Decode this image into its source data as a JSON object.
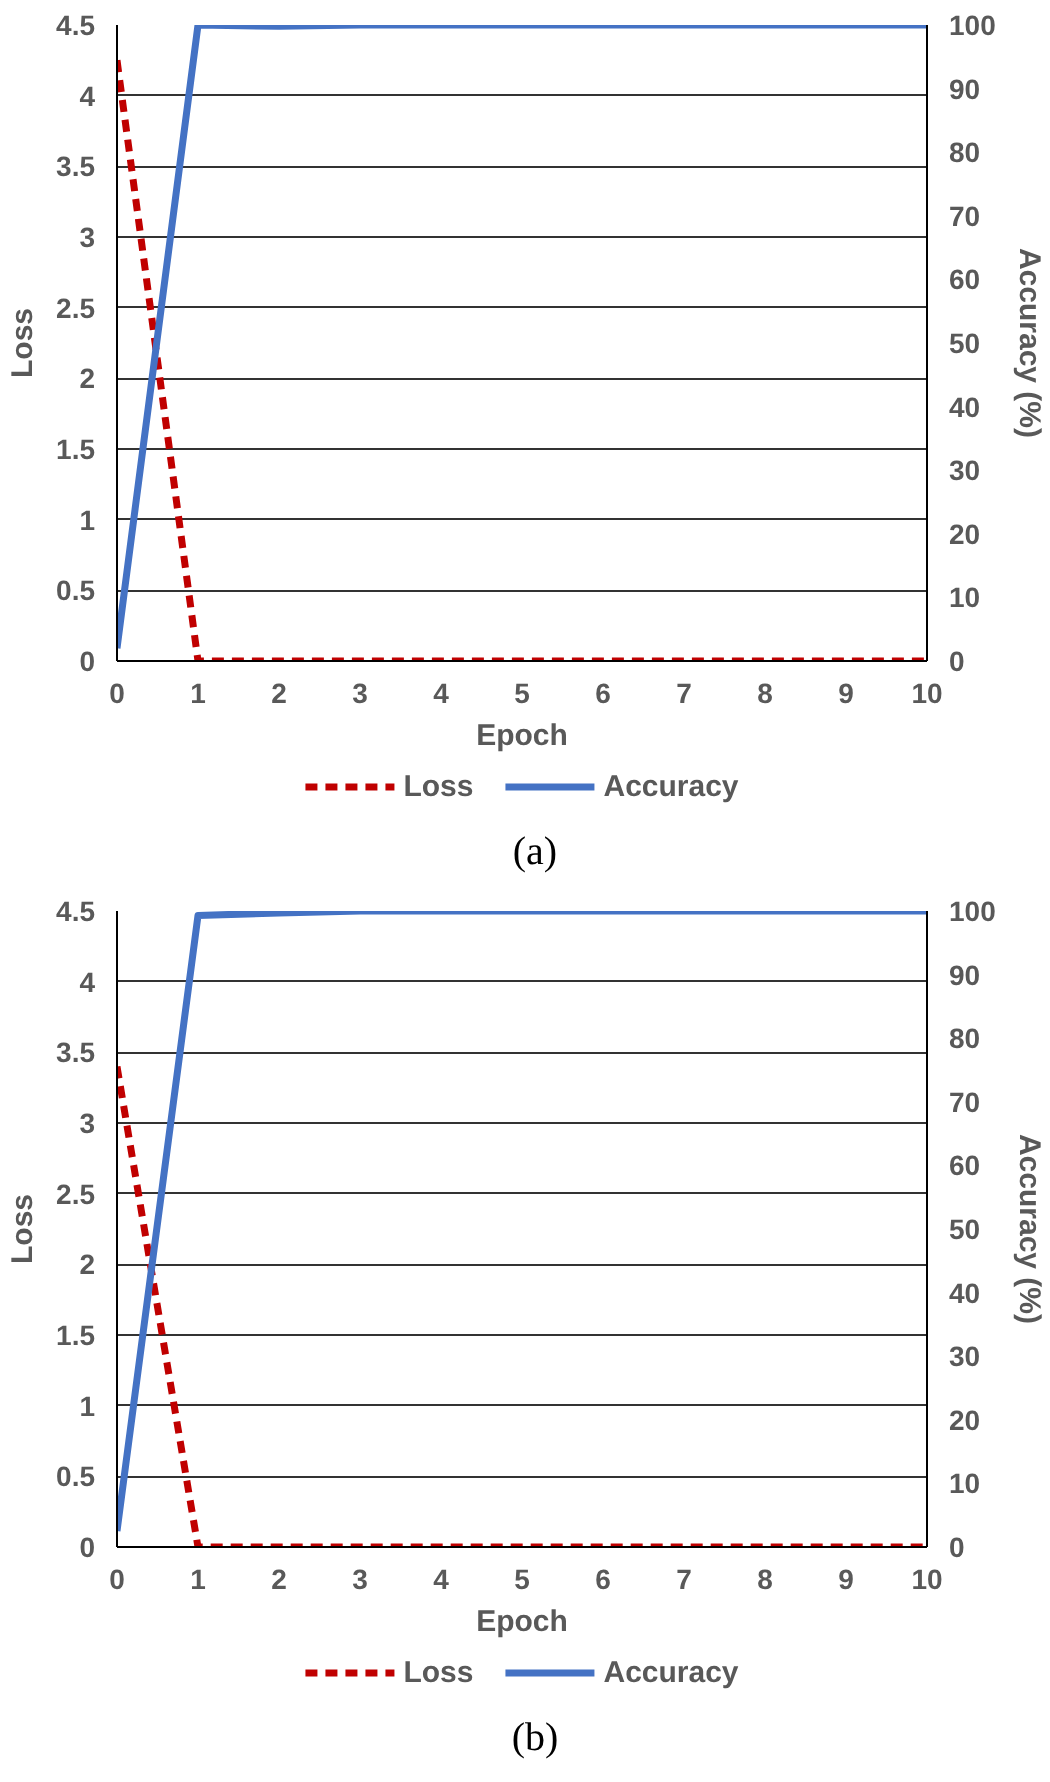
{
  "chart_data": [
    {
      "type": "line",
      "xlabel": "Epoch",
      "ylabel": "Loss",
      "y2label": "Accuracy (%)",
      "annotations": [
        "(a)"
      ],
      "x": [
        0,
        1,
        2,
        3,
        4,
        5,
        6,
        7,
        8,
        9,
        10
      ],
      "series": [
        {
          "name": "Loss",
          "color": "#c00000",
          "line_style": "dashed",
          "values": [
            4.25,
            0,
            0,
            0,
            0,
            0,
            0,
            0,
            0,
            0,
            0
          ]
        },
        {
          "name": "Accuracy",
          "color": "#4472c4",
          "line_style": "solid",
          "axis": "y2",
          "values": [
            2,
            100,
            99.8,
            100,
            100,
            100,
            100,
            100,
            100,
            100,
            100
          ]
        }
      ],
      "xlim": [
        0,
        10
      ],
      "xticks": [
        0,
        1,
        2,
        3,
        4,
        5,
        6,
        7,
        8,
        9,
        10
      ],
      "ylim": [
        0,
        4.5
      ],
      "yticks": [
        0,
        0.5,
        1,
        1.5,
        2,
        2.5,
        3,
        3.5,
        4,
        4.5
      ],
      "y2lim": [
        0,
        100
      ],
      "y2ticks": [
        0,
        10,
        20,
        30,
        40,
        50,
        60,
        70,
        80,
        90,
        100
      ],
      "grid": "y",
      "legend": "bottom",
      "marker": "none"
    },
    {
      "type": "line",
      "xlabel": "Epoch",
      "ylabel": "Loss",
      "y2label": "Accuracy (%)",
      "annotations": [
        "(b)"
      ],
      "x": [
        0,
        1,
        2,
        3,
        4,
        5,
        6,
        7,
        8,
        9,
        10
      ],
      "series": [
        {
          "name": "Loss",
          "color": "#c00000",
          "line_style": "dashed",
          "values": [
            3.4,
            0,
            0,
            0,
            0,
            0,
            0,
            0,
            0,
            0,
            0
          ]
        },
        {
          "name": "Accuracy",
          "color": "#4472c4",
          "line_style": "solid",
          "axis": "y2",
          "values": [
            2.5,
            99.3,
            99.7,
            100,
            100,
            100,
            100,
            100,
            100,
            100,
            100
          ]
        }
      ],
      "xlim": [
        0,
        10
      ],
      "xticks": [
        0,
        1,
        2,
        3,
        4,
        5,
        6,
        7,
        8,
        9,
        10
      ],
      "ylim": [
        0,
        4.5
      ],
      "yticks": [
        0,
        0.5,
        1,
        1.5,
        2,
        2.5,
        3,
        3.5,
        4,
        4.5
      ],
      "y2lim": [
        0,
        100
      ],
      "y2ticks": [
        0,
        10,
        20,
        30,
        40,
        50,
        60,
        70,
        80,
        90,
        100
      ],
      "grid": "y",
      "legend": "bottom",
      "marker": "none"
    }
  ]
}
